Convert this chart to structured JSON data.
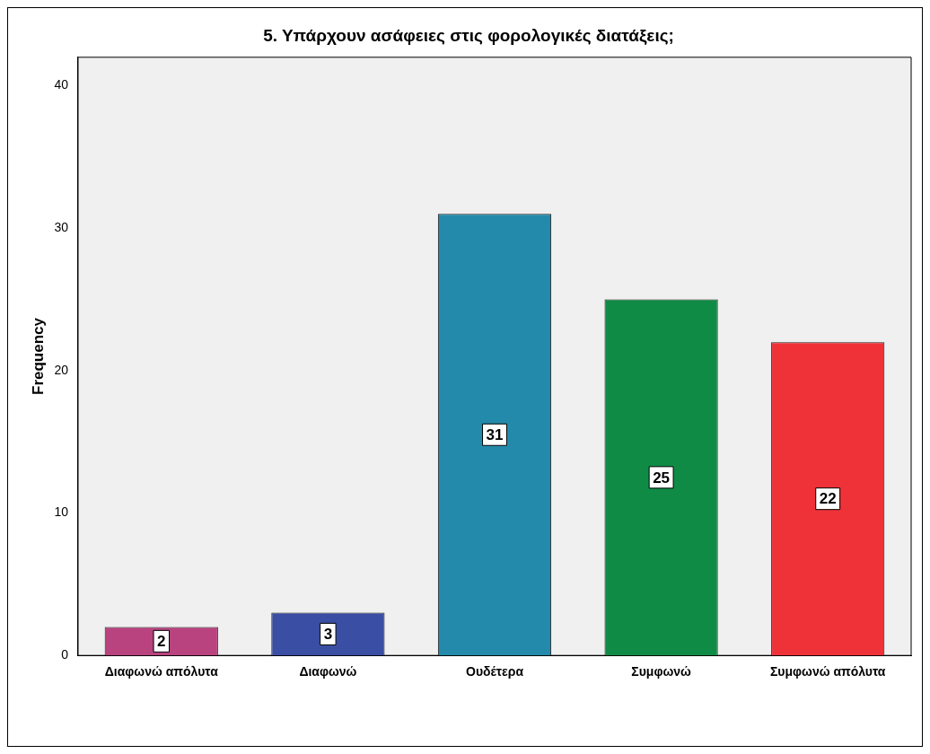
{
  "chart_data": {
    "type": "bar",
    "title": "5. Υπάρχουν ασάφειες στις φορολογικές διατάξεις;",
    "ylabel": "Frequency",
    "categories": [
      "Διαφωνώ απόλυτα",
      "Διαφωνώ",
      "Ουδέτερα",
      "Συμφωνώ",
      "Συμφωνώ απόλυτα"
    ],
    "values": [
      2,
      3,
      31,
      25,
      22
    ],
    "colors": [
      "#b8437f",
      "#3a4ea3",
      "#248aab",
      "#108b45",
      "#ee3238"
    ],
    "ylim": [
      0,
      42
    ],
    "yticks": [
      0,
      10,
      20,
      30,
      40
    ],
    "grid": false,
    "legend": false,
    "data_labels": true
  }
}
